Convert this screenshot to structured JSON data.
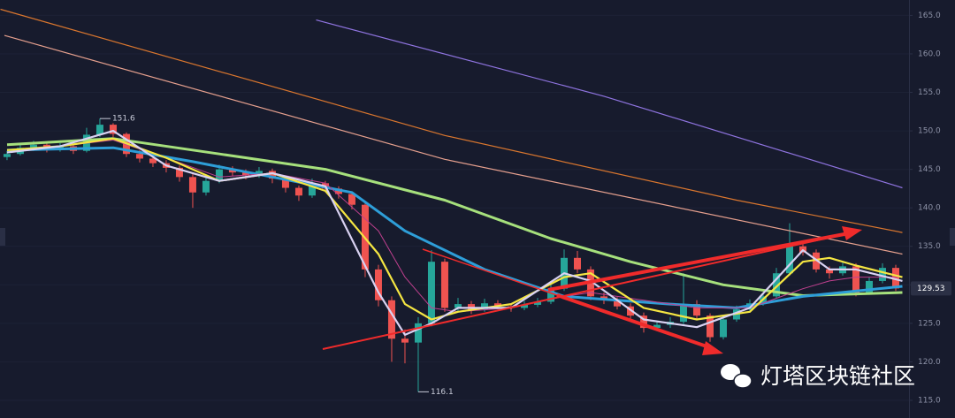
{
  "chart_data": {
    "type": "candlestick",
    "xlim": [
      -0.53,
      68
    ],
    "ylim": [
      112.7,
      167
    ],
    "yticks": [
      {
        "value": 115,
        "label": "115.0"
      },
      {
        "value": 120,
        "label": "120.0"
      },
      {
        "value": 125,
        "label": "125.0"
      },
      {
        "value": 130,
        "label": "130.0"
      },
      {
        "value": 135,
        "label": "135.0"
      },
      {
        "value": 140,
        "label": "140.0"
      },
      {
        "value": 145,
        "label": "145.0"
      },
      {
        "value": 150,
        "label": "150.0"
      },
      {
        "value": 155,
        "label": "155.0"
      },
      {
        "value": 160,
        "label": "160.0"
      },
      {
        "value": 165,
        "label": "165.0"
      }
    ],
    "up_color": "#26a69a",
    "down_color": "#ef5350",
    "candles": [
      [
        146.6,
        147.4,
        146.2,
        147.0
      ],
      [
        147.0,
        148.3,
        146.8,
        147.8
      ],
      [
        147.8,
        148.7,
        147.4,
        148.2
      ],
      [
        148.2,
        148.5,
        147.2,
        147.6
      ],
      [
        147.6,
        148.4,
        147.3,
        148.0
      ],
      [
        148.0,
        148.3,
        147.0,
        147.4
      ],
      [
        147.4,
        150.4,
        147.2,
        149.5
      ],
      [
        149.5,
        151.6,
        149.2,
        150.8
      ],
      [
        150.8,
        151.0,
        149.2,
        149.6
      ],
      [
        149.6,
        149.8,
        146.6,
        147.0
      ],
      [
        147.0,
        147.5,
        145.9,
        146.4
      ],
      [
        146.4,
        146.9,
        145.3,
        145.8
      ],
      [
        145.8,
        146.2,
        144.6,
        145.2
      ],
      [
        145.2,
        145.5,
        143.4,
        144.0
      ],
      [
        144.0,
        144.4,
        140.0,
        142.0
      ],
      [
        142.0,
        144.0,
        141.6,
        143.5
      ],
      [
        143.5,
        145.6,
        143.2,
        145.0
      ],
      [
        145.0,
        145.4,
        144.1,
        144.6
      ],
      [
        144.6,
        145.0,
        143.7,
        144.2
      ],
      [
        144.2,
        145.3,
        143.9,
        144.8
      ],
      [
        144.8,
        145.1,
        143.2,
        143.8
      ],
      [
        143.8,
        144.1,
        142.0,
        142.6
      ],
      [
        142.6,
        142.9,
        140.9,
        141.6
      ],
      [
        141.6,
        143.8,
        141.3,
        143.2
      ],
      [
        143.2,
        143.5,
        142.0,
        142.5
      ],
      [
        142.5,
        142.8,
        141.2,
        141.8
      ],
      [
        141.8,
        142.1,
        139.8,
        140.4
      ],
      [
        140.4,
        140.8,
        131.0,
        132.0
      ],
      [
        132.0,
        132.6,
        127.2,
        128.0
      ],
      [
        128.0,
        128.5,
        120.0,
        123.0
      ],
      [
        123.0,
        124.2,
        119.8,
        122.5
      ],
      [
        122.5,
        125.8,
        116.1,
        125.0
      ],
      [
        125.0,
        134.5,
        124.6,
        133.0
      ],
      [
        133.0,
        133.4,
        126.5,
        127.0
      ],
      [
        127.0,
        128.3,
        126.4,
        127.5
      ],
      [
        127.5,
        127.9,
        126.2,
        126.8
      ],
      [
        126.8,
        128.2,
        126.5,
        127.6
      ],
      [
        127.6,
        128.0,
        126.8,
        127.2
      ],
      [
        127.2,
        127.6,
        126.5,
        127.0
      ],
      [
        127.0,
        127.9,
        126.7,
        127.4
      ],
      [
        127.4,
        128.3,
        127.1,
        127.8
      ],
      [
        127.8,
        130.2,
        127.5,
        129.5
      ],
      [
        129.5,
        134.6,
        129.2,
        133.5
      ],
      [
        133.5,
        134.4,
        131.5,
        132.0
      ],
      [
        132.0,
        132.4,
        128.0,
        128.5
      ],
      [
        128.5,
        129.0,
        127.5,
        128.0
      ],
      [
        128.0,
        128.4,
        126.8,
        127.2
      ],
      [
        127.2,
        127.6,
        125.5,
        126.0
      ],
      [
        126.0,
        126.4,
        123.8,
        124.4
      ],
      [
        124.4,
        125.3,
        124.0,
        124.8
      ],
      [
        124.8,
        125.8,
        124.4,
        125.2
      ],
      [
        125.2,
        131.5,
        124.9,
        127.5
      ],
      [
        127.5,
        128.0,
        125.6,
        126.0
      ],
      [
        126.0,
        126.3,
        122.6,
        123.2
      ],
      [
        123.2,
        126.0,
        122.9,
        125.5
      ],
      [
        125.5,
        127.3,
        125.2,
        126.8
      ],
      [
        126.8,
        128.1,
        126.5,
        127.6
      ],
      [
        127.6,
        129.0,
        127.3,
        128.5
      ],
      [
        128.5,
        132.2,
        128.2,
        131.5
      ],
      [
        131.5,
        138.0,
        131.2,
        135.0
      ],
      [
        135.0,
        135.6,
        133.8,
        134.2
      ],
      [
        134.2,
        134.6,
        131.6,
        132.0
      ],
      [
        132.0,
        132.4,
        130.8,
        131.5
      ],
      [
        131.5,
        133.0,
        131.2,
        132.4
      ],
      [
        132.4,
        132.8,
        128.5,
        129.0
      ],
      [
        129.0,
        131.0,
        128.7,
        130.5
      ],
      [
        130.5,
        132.8,
        130.2,
        132.2
      ],
      [
        132.2,
        132.6,
        129.2,
        129.53
      ]
    ],
    "series": [
      {
        "color": "#8f74e0",
        "width": 1.2,
        "x": [
          23.3,
          45,
          67.5
        ],
        "values": [
          164.4,
          154.5,
          142.6
        ]
      },
      {
        "color": "#d9762e",
        "width": 1.2,
        "x": [
          -0.5,
          33,
          55,
          67.5
        ],
        "values": [
          165.8,
          149.4,
          141,
          136.8
        ]
      },
      {
        "color": "#e6a08e",
        "width": 1.2,
        "x": [
          -0.2,
          33,
          67.5
        ],
        "values": [
          162.4,
          146.3,
          134
        ]
      },
      {
        "color": "#a6e07c",
        "width": 3,
        "x": [
          0,
          8,
          16,
          24,
          33,
          41,
          47,
          54,
          60,
          67.5
        ],
        "values": [
          148.2,
          149,
          147,
          145,
          141,
          136,
          133,
          130,
          128.6,
          129
        ]
      },
      {
        "color": "#2e9ed8",
        "width": 3,
        "x": [
          0,
          8,
          14,
          20,
          26,
          30,
          36,
          42,
          50,
          55,
          60,
          67.5
        ],
        "values": [
          147.5,
          147.8,
          146,
          144,
          142,
          137,
          132,
          128.5,
          127.5,
          127,
          128.5,
          129.8
        ]
      },
      {
        "color": "#c0408f",
        "width": 1,
        "x": [
          0,
          4,
          8,
          12,
          16,
          20,
          24,
          28,
          30,
          32,
          34,
          38,
          42,
          44,
          48,
          52,
          56,
          60,
          62,
          64,
          67.5
        ],
        "values": [
          147.5,
          148,
          148.8,
          146.5,
          144,
          144.5,
          143.2,
          137,
          131,
          127,
          126.5,
          127,
          128.5,
          129,
          128,
          127,
          127,
          129.5,
          130.5,
          131,
          131
        ]
      },
      {
        "color": "#f5e642",
        "width": 2.2,
        "x": [
          0,
          4,
          8,
          12,
          16,
          20,
          24,
          28,
          30,
          32,
          34,
          38,
          42,
          44,
          48,
          52,
          56,
          60,
          62,
          64,
          67.5
        ],
        "values": [
          147.5,
          148,
          149,
          146.5,
          143.5,
          144.5,
          142.2,
          134,
          127.5,
          125.5,
          126.5,
          127.5,
          131,
          131.5,
          127,
          125.5,
          126.5,
          133,
          133.5,
          132.5,
          131
        ]
      },
      {
        "color": "#d9d2f2",
        "width": 2.2,
        "x": [
          0,
          4,
          8,
          12,
          16,
          20,
          24,
          28,
          30,
          32,
          34,
          38,
          42,
          44,
          48,
          52,
          56,
          60,
          62,
          64,
          67.5
        ],
        "values": [
          147.2,
          148,
          150,
          145.5,
          143.5,
          144.5,
          142.8,
          129,
          123.5,
          125,
          127,
          127,
          131.5,
          130.5,
          125.5,
          124.5,
          127,
          134.5,
          132,
          132,
          130.5
        ]
      }
    ],
    "high_label": "151.6",
    "low_label": "116.1",
    "last_price": 129.53,
    "watermark": "灯塔区块链社区"
  }
}
